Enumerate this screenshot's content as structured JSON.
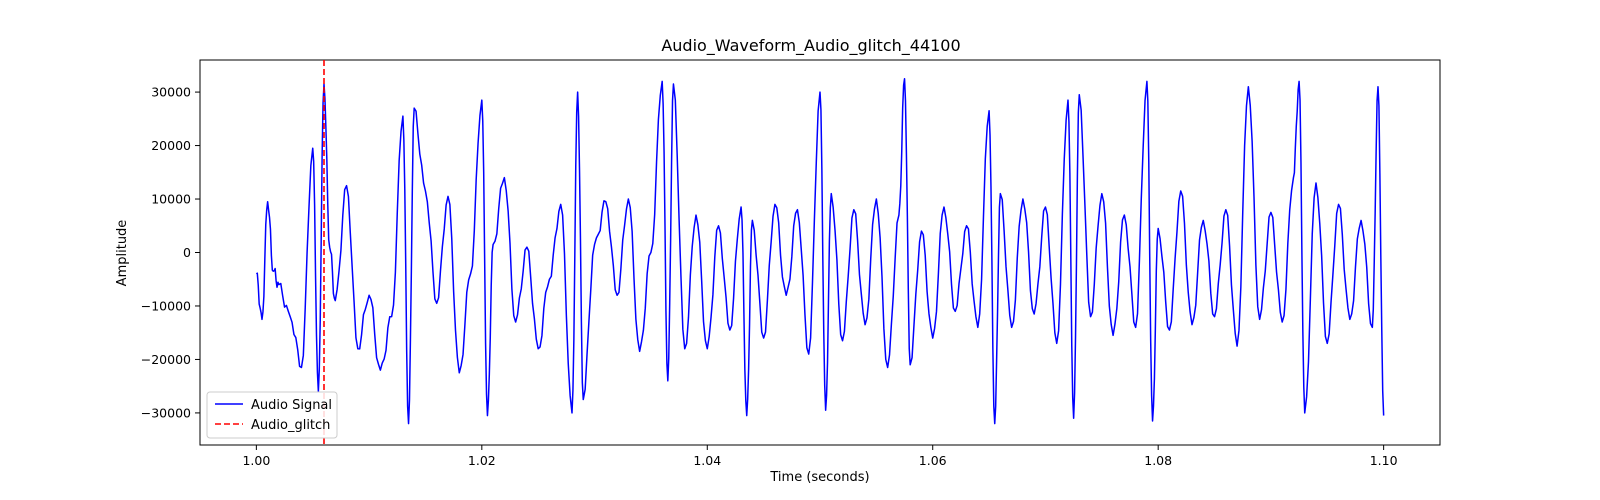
{
  "chart_data": {
    "type": "line",
    "title": "Audio_Waveform_Audio_glitch_44100",
    "xlabel": "Time (seconds)",
    "ylabel": "Amplitude",
    "xlim": [
      0.995,
      1.105
    ],
    "ylim": [
      -36000,
      36000
    ],
    "x_ticks": [
      1.0,
      1.02,
      1.04,
      1.06,
      1.08,
      1.1
    ],
    "x_tick_labels": [
      "1.00",
      "1.02",
      "1.04",
      "1.06",
      "1.08",
      "1.10"
    ],
    "y_ticks": [
      -30000,
      -20000,
      -10000,
      0,
      10000,
      20000,
      30000
    ],
    "y_tick_labels": [
      "−30000",
      "−20000",
      "−10000",
      "0",
      "10000",
      "20000",
      "30000"
    ],
    "grid": false,
    "legend_position": "lower-left",
    "series": [
      {
        "name": "Audio Signal",
        "color": "#0000ff",
        "style": "solid",
        "x": [
          1.0,
          1.0005,
          1.001,
          1.0015,
          1.002,
          1.003,
          1.004,
          1.005,
          1.0055,
          1.006,
          1.0065,
          1.007,
          1.008,
          1.009,
          1.01,
          1.011,
          1.012,
          1.013,
          1.0135,
          1.014,
          1.015,
          1.016,
          1.017,
          1.018,
          1.019,
          1.02,
          1.0205,
          1.021,
          1.022,
          1.023,
          1.024,
          1.025,
          1.026,
          1.027,
          1.028,
          1.0285,
          1.029,
          1.03,
          1.031,
          1.032,
          1.033,
          1.034,
          1.035,
          1.036,
          1.0365,
          1.037,
          1.038,
          1.039,
          1.04,
          1.041,
          1.042,
          1.043,
          1.0435,
          1.044,
          1.045,
          1.046,
          1.047,
          1.048,
          1.049,
          1.05,
          1.0505,
          1.051,
          1.052,
          1.053,
          1.054,
          1.055,
          1.056,
          1.057,
          1.0575,
          1.058,
          1.059,
          1.06,
          1.061,
          1.062,
          1.063,
          1.064,
          1.065,
          1.0655,
          1.066,
          1.067,
          1.068,
          1.069,
          1.07,
          1.071,
          1.072,
          1.0725,
          1.073,
          1.074,
          1.075,
          1.076,
          1.077,
          1.078,
          1.079,
          1.0795,
          1.08,
          1.081,
          1.082,
          1.083,
          1.084,
          1.085,
          1.086,
          1.087,
          1.088,
          1.089,
          1.09,
          1.091,
          1.092,
          1.0925,
          1.093,
          1.094,
          1.095,
          1.096,
          1.097,
          1.098,
          1.099,
          1.0995,
          1.1
        ],
        "y": [
          -4000,
          -12500,
          9500,
          -3500,
          -6000,
          -12000,
          -21500,
          19500,
          -26000,
          31500,
          1000,
          -9000,
          12500,
          -18000,
          -8000,
          -22000,
          -12000,
          25500,
          -32000,
          27000,
          11500,
          -9500,
          10500,
          -22500,
          -4000,
          28500,
          -30500,
          1500,
          14000,
          -13000,
          1000,
          -18000,
          -5000,
          9000,
          -30000,
          30000,
          -27500,
          1500,
          9500,
          -8000,
          10000,
          -18500,
          0,
          32000,
          -24000,
          31500,
          -18000,
          7000,
          -18000,
          5000,
          -14500,
          8500,
          -30500,
          6000,
          -16000,
          9000,
          -8000,
          8000,
          -19000,
          30000,
          -29500,
          11000,
          -16500,
          8000,
          -13500,
          10000,
          -21500,
          7000,
          32500,
          -21000,
          4000,
          -16000,
          8500,
          -11000,
          5000,
          -14000,
          26500,
          -32000,
          11000,
          -14000,
          10000,
          -11500,
          8500,
          -17000,
          28500,
          -31000,
          29500,
          -12000,
          11000,
          -15500,
          7000,
          -14000,
          32000,
          -31500,
          4500,
          -14500,
          11500,
          -13500,
          6000,
          -12000,
          8000,
          -17500,
          31000,
          -12500,
          7500,
          -13000,
          14000,
          32000,
          -30000,
          13000,
          -17000,
          9000,
          -12500,
          6000,
          -14000,
          31000,
          -30500
        ]
      },
      {
        "name": "Audio_glitch",
        "color": "#ff0000",
        "style": "dashed",
        "vline_x": 1.006
      }
    ]
  }
}
